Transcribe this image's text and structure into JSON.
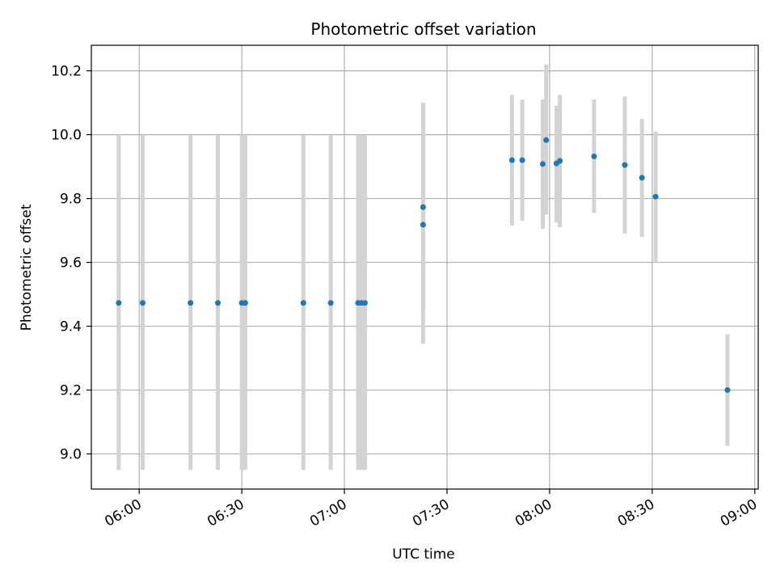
{
  "chart_data": {
    "type": "scatter",
    "title": "Photometric offset variation",
    "xlabel": "UTC time",
    "ylabel": "Photometric offset",
    "x_axis_type": "time",
    "xlim": [
      "05:46",
      "09:01"
    ],
    "ylim": [
      8.89,
      10.28
    ],
    "x_ticks": [
      "06:00",
      "06:30",
      "07:00",
      "07:30",
      "08:00",
      "08:30",
      "09:00"
    ],
    "y_ticks": [
      9.0,
      9.2,
      9.4,
      9.6,
      9.8,
      10.0,
      10.2
    ],
    "grid": true,
    "colors": {
      "point": "#1f77b4",
      "errorbar": "#d3d3d3",
      "grid": "#b0b0b0"
    },
    "points": [
      {
        "x": "05:54",
        "y": 9.473,
        "ylow": 8.95,
        "yhigh": 10.0
      },
      {
        "x": "06:01",
        "y": 9.473,
        "ylow": 8.95,
        "yhigh": 10.0
      },
      {
        "x": "06:15",
        "y": 9.473,
        "ylow": 8.95,
        "yhigh": 10.0
      },
      {
        "x": "06:23",
        "y": 9.473,
        "ylow": 8.95,
        "yhigh": 10.0
      },
      {
        "x": "06:30",
        "y": 9.473,
        "ylow": 8.95,
        "yhigh": 10.0
      },
      {
        "x": "06:31",
        "y": 9.473,
        "ylow": 8.95,
        "yhigh": 10.0
      },
      {
        "x": "06:48",
        "y": 9.473,
        "ylow": 8.95,
        "yhigh": 10.0
      },
      {
        "x": "06:56",
        "y": 9.473,
        "ylow": 8.95,
        "yhigh": 10.0
      },
      {
        "x": "07:04",
        "y": 9.473,
        "ylow": 8.95,
        "yhigh": 10.0
      },
      {
        "x": "07:05",
        "y": 9.473,
        "ylow": 8.95,
        "yhigh": 10.0
      },
      {
        "x": "07:06",
        "y": 9.473,
        "ylow": 8.95,
        "yhigh": 10.0
      },
      {
        "x": "07:23",
        "y": 9.718,
        "ylow": 9.345,
        "yhigh": 10.09
      },
      {
        "x": "07:23",
        "y": 9.773,
        "ylow": 9.445,
        "yhigh": 10.1
      },
      {
        "x": "07:49",
        "y": 9.92,
        "ylow": 9.715,
        "yhigh": 10.125
      },
      {
        "x": "07:52",
        "y": 9.92,
        "ylow": 9.73,
        "yhigh": 10.11
      },
      {
        "x": "07:58",
        "y": 9.908,
        "ylow": 9.705,
        "yhigh": 10.11
      },
      {
        "x": "07:59",
        "y": 9.983,
        "ylow": 9.75,
        "yhigh": 10.22
      },
      {
        "x": "08:02",
        "y": 9.91,
        "ylow": 9.725,
        "yhigh": 10.09
      },
      {
        "x": "08:03",
        "y": 9.918,
        "ylow": 9.71,
        "yhigh": 10.125
      },
      {
        "x": "08:13",
        "y": 9.932,
        "ylow": 9.755,
        "yhigh": 10.11
      },
      {
        "x": "08:22",
        "y": 9.905,
        "ylow": 9.69,
        "yhigh": 10.12
      },
      {
        "x": "08:27",
        "y": 9.865,
        "ylow": 9.68,
        "yhigh": 10.05
      },
      {
        "x": "08:31",
        "y": 9.806,
        "ylow": 9.6,
        "yhigh": 10.01
      },
      {
        "x": "08:52",
        "y": 9.2,
        "ylow": 9.025,
        "yhigh": 9.375
      }
    ]
  }
}
